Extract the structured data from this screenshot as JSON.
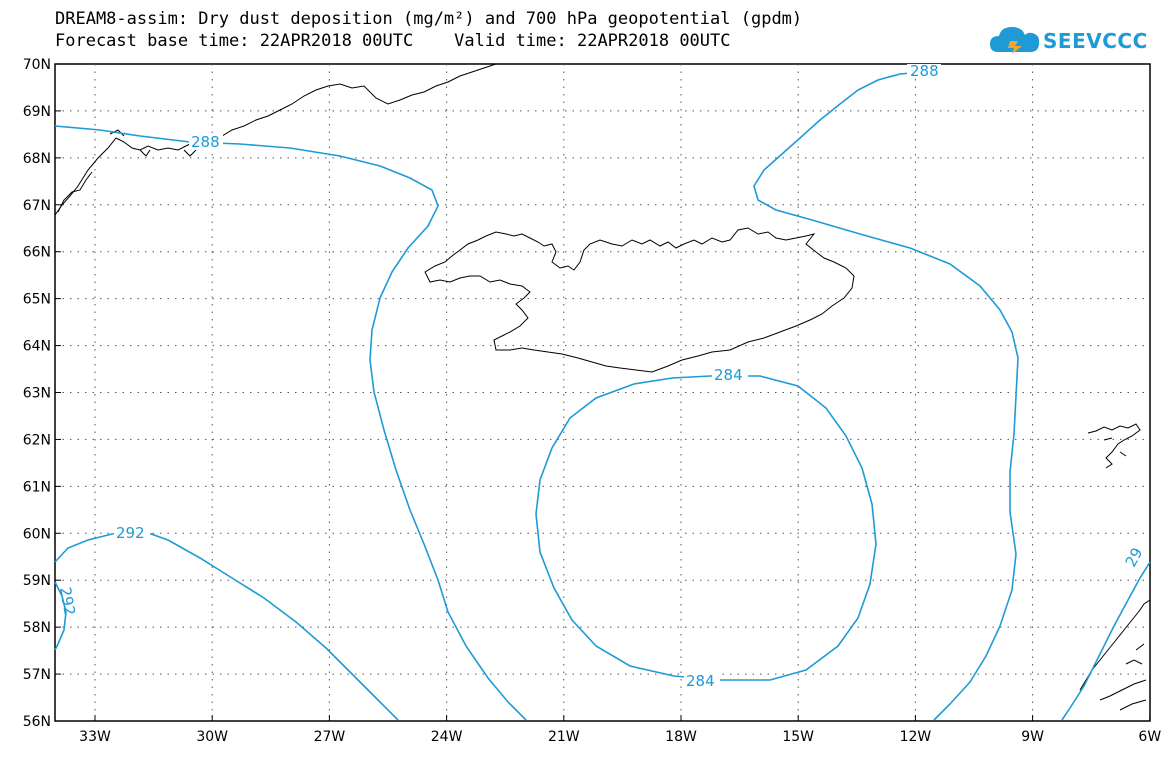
{
  "title": {
    "line1": "DREAM8-assim: Dry dust deposition (mg/m²) and 700 hPa geopotential (gpdm)",
    "line2": "Forecast base time: 22APR2018 00UTC    Valid time: 22APR2018 00UTC"
  },
  "logo": {
    "text": "SEEVCCC",
    "icon": "cloud-icon"
  },
  "axes": {
    "lat_labels": [
      "70N",
      "69N",
      "68N",
      "67N",
      "66N",
      "65N",
      "64N",
      "63N",
      "62N",
      "61N",
      "60N",
      "59N",
      "58N",
      "57N",
      "56N"
    ],
    "lon_labels": [
      "33W",
      "30W",
      "27W",
      "24W",
      "21W",
      "18W",
      "15W",
      "12W",
      "9W",
      "6W"
    ]
  },
  "contours": {
    "color": "#1e9bd7",
    "labels": [
      {
        "id": "c288-nw",
        "text": "288"
      },
      {
        "id": "c288-ne",
        "text": "288"
      },
      {
        "id": "c284-top",
        "text": "284"
      },
      {
        "id": "c284-bottom",
        "text": "284"
      },
      {
        "id": "c292-sw",
        "text": "292"
      },
      {
        "id": "c292-w",
        "text": "292"
      },
      {
        "id": "c29-e",
        "text": "29"
      }
    ]
  }
}
